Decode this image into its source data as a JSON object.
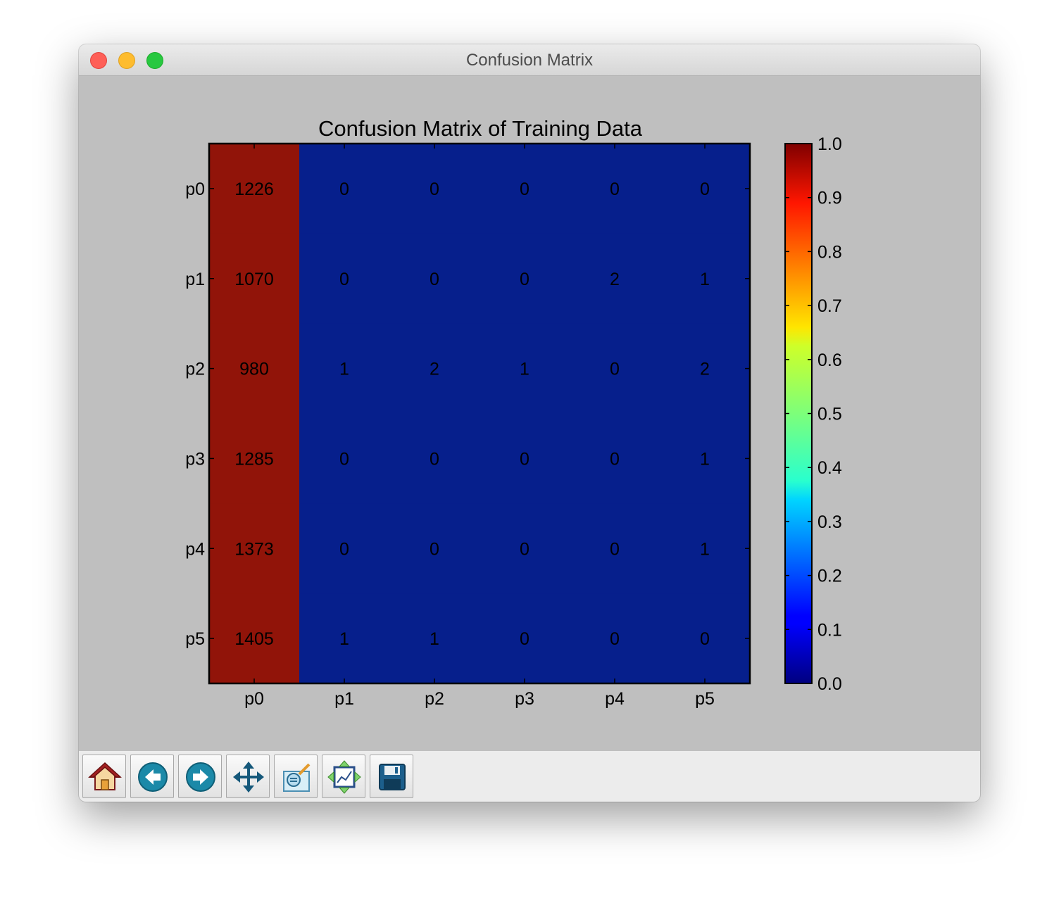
{
  "window": {
    "title": "Confusion Matrix"
  },
  "toolbar": {
    "buttons": [
      {
        "name": "home-button",
        "icon": "home-icon"
      },
      {
        "name": "back-button",
        "icon": "arrow-left-icon"
      },
      {
        "name": "forward-button",
        "icon": "arrow-right-icon"
      },
      {
        "name": "pan-button",
        "icon": "move-arrows-icon"
      },
      {
        "name": "zoom-button",
        "icon": "zoom-rect-icon"
      },
      {
        "name": "subplots-button",
        "icon": "subplots-icon"
      },
      {
        "name": "save-button",
        "icon": "floppy-disk-icon"
      }
    ]
  },
  "chart_data": {
    "type": "heatmap",
    "title": "Confusion Matrix of Training Data",
    "xlabel": "",
    "ylabel": "",
    "x_categories": [
      "p0",
      "p1",
      "p2",
      "p3",
      "p4",
      "p5"
    ],
    "y_categories": [
      "p0",
      "p1",
      "p2",
      "p3",
      "p4",
      "p5"
    ],
    "values": [
      [
        1226,
        0,
        0,
        0,
        0,
        0
      ],
      [
        1070,
        0,
        0,
        0,
        2,
        1
      ],
      [
        980,
        1,
        2,
        1,
        0,
        2
      ],
      [
        1285,
        0,
        0,
        0,
        0,
        1
      ],
      [
        1373,
        0,
        0,
        0,
        0,
        1
      ],
      [
        1405,
        1,
        1,
        0,
        0,
        0
      ]
    ],
    "cell_colors": [
      [
        1.0,
        0.0,
        0.0,
        0.0,
        0.0,
        0.0
      ],
      [
        1.0,
        0.0,
        0.0,
        0.0,
        0.0,
        0.0
      ],
      [
        1.0,
        0.0,
        0.0,
        0.0,
        0.0,
        0.0
      ],
      [
        1.0,
        0.0,
        0.0,
        0.0,
        0.0,
        0.0
      ],
      [
        1.0,
        0.0,
        0.0,
        0.0,
        0.0,
        0.0
      ],
      [
        1.0,
        0.0,
        0.0,
        0.0,
        0.0,
        0.0
      ]
    ],
    "colorbar": {
      "colormap": "jet",
      "range": [
        0.0,
        1.0
      ],
      "ticks": [
        "0.0",
        "0.1",
        "0.2",
        "0.3",
        "0.4",
        "0.5",
        "0.6",
        "0.7",
        "0.8",
        "0.9",
        "1.0"
      ]
    },
    "colors": {
      "high": "#911409",
      "low": "#061f8c",
      "background": "#bfbfbf"
    },
    "grid": false
  }
}
